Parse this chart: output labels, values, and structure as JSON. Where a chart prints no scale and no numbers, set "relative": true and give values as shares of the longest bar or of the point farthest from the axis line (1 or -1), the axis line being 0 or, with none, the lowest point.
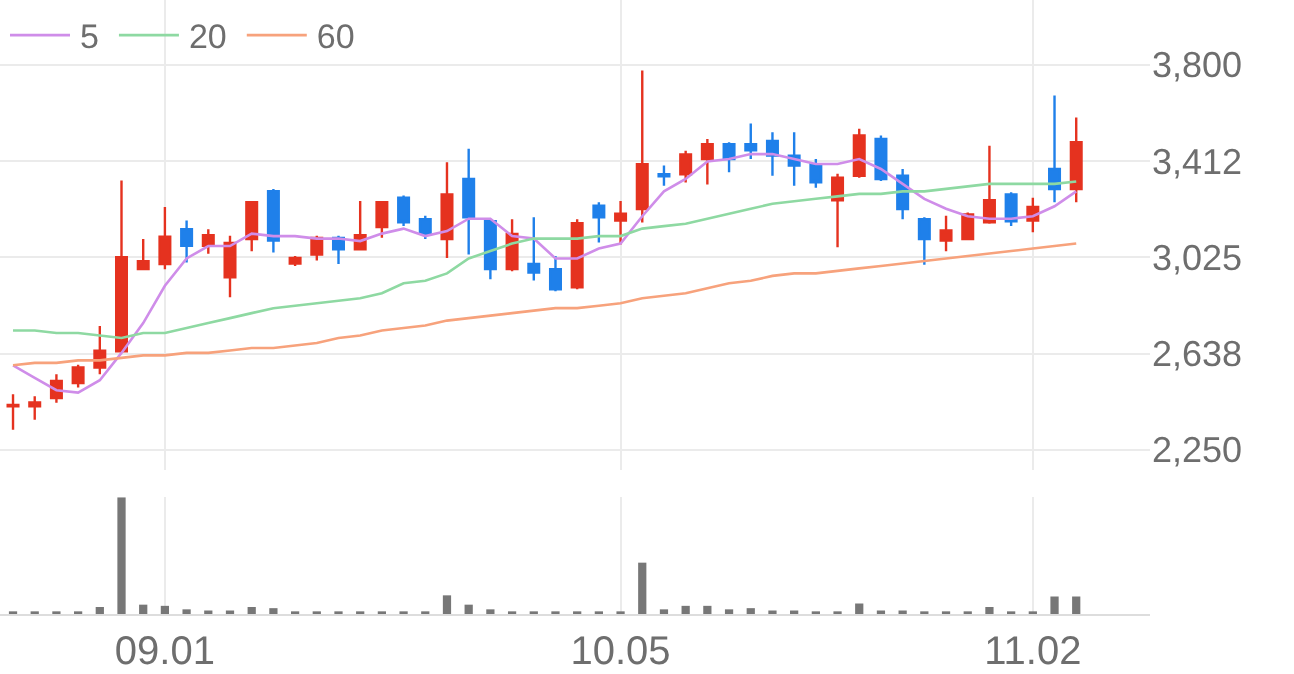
{
  "chart_data": [
    {
      "type": "candlestick",
      "categories": [
        null,
        null,
        null,
        null,
        null,
        null,
        null,
        "09.01",
        null,
        null,
        null,
        null,
        null,
        null,
        null,
        null,
        null,
        null,
        null,
        null,
        null,
        null,
        null,
        null,
        null,
        null,
        null,
        null,
        "10.05",
        null,
        null,
        null,
        null,
        null,
        null,
        null,
        null,
        null,
        null,
        null,
        null,
        null,
        null,
        null,
        null,
        null,
        null,
        "11.02",
        null,
        null
      ],
      "ohlc": [
        [
          2425,
          2474,
          2331,
          2431
        ],
        [
          2425,
          2466,
          2371,
          2441
        ],
        [
          2458,
          2554,
          2439,
          2527
        ],
        [
          2519,
          2592,
          2501,
          2581
        ],
        [
          2581,
          2748,
          2554,
          2649
        ],
        [
          2646,
          3334,
          2640,
          3025
        ],
        [
          2977,
          3098,
          2977,
          3009
        ],
        [
          2998,
          3227,
          2977,
          3108
        ],
        [
          3138,
          3173,
          3004,
          3071
        ],
        [
          3071,
          3138,
          3039,
          3114
        ],
        [
          2944,
          3111,
          2864,
          3082
        ],
        [
          3098,
          3251,
          3049,
          3246
        ],
        [
          3291,
          3299,
          3044,
          3092
        ],
        [
          3000,
          3030,
          2990,
          3022
        ],
        [
          3036,
          3111,
          3012,
          3103
        ],
        [
          3103,
          3111,
          2998,
          3057
        ],
        [
          3057,
          3251,
          3052,
          3114
        ],
        [
          3146,
          3251,
          3103,
          3246
        ],
        [
          3264,
          3273,
          3151,
          3165
        ],
        [
          3178,
          3192,
          3098,
          3119
        ],
        [
          3098,
          3407,
          3022,
          3278
        ],
        [
          3340,
          3461,
          3036,
          3186
        ],
        [
          3170,
          3178,
          2936,
          2977
        ],
        [
          2977,
          3178,
          2969,
          3119
        ],
        [
          2998,
          3186,
          2931,
          2963
        ],
        [
          2977,
          3030,
          2888,
          2896
        ],
        [
          2904,
          3178,
          2896,
          3162
        ],
        [
          3232,
          3246,
          3084,
          3186
        ],
        [
          3173,
          3251,
          3076,
          3200
        ],
        [
          3219,
          3776,
          3165,
          3399
        ],
        [
          3359,
          3394,
          3313,
          3351
        ],
        [
          3359,
          3453,
          3326,
          3439
        ],
        [
          3420,
          3501,
          3318,
          3480
        ],
        [
          3480,
          3488,
          3367,
          3420
        ],
        [
          3480,
          3563,
          3420,
          3455
        ],
        [
          3493,
          3528,
          3353,
          3434
        ],
        [
          3434,
          3528,
          3313,
          3394
        ],
        [
          3399,
          3420,
          3305,
          3326
        ],
        [
          3254,
          3361,
          3065,
          3345
        ],
        [
          3353,
          3542,
          3345,
          3515
        ],
        [
          3501,
          3515,
          3332,
          3340
        ],
        [
          3353,
          3380,
          3178,
          3219
        ],
        [
          3178,
          3186,
          2995,
          3098
        ],
        [
          3092,
          3192,
          3049,
          3133
        ],
        [
          3098,
          3205,
          3098,
          3197
        ],
        [
          3165,
          3474,
          3160,
          3254
        ],
        [
          3278,
          3286,
          3151,
          3170
        ],
        [
          3173,
          3264,
          3125,
          3227
        ],
        [
          3380,
          3676,
          3246,
          3299
        ],
        [
          3299,
          3587,
          3246,
          3488
        ]
      ],
      "colors": [
        "#e5321f",
        "#e5321f",
        "#e5321f",
        "#e5321f",
        "#e5321f",
        "#e5321f",
        "#e5321f",
        "#e5321f",
        "#1f80ea",
        "#e5321f",
        "#e5321f",
        "#e5321f",
        "#1f80ea",
        "#e5321f",
        "#e5321f",
        "#1f80ea",
        "#e5321f",
        "#e5321f",
        "#1f80ea",
        "#1f80ea",
        "#e5321f",
        "#1f80ea",
        "#1f80ea",
        "#e5321f",
        "#1f80ea",
        "#1f80ea",
        "#e5321f",
        "#1f80ea",
        "#e5321f",
        "#e5321f",
        "#1f80ea",
        "#e5321f",
        "#e5321f",
        "#1f80ea",
        "#1f80ea",
        "#1f80ea",
        "#1f80ea",
        "#1f80ea",
        "#e5321f",
        "#e5321f",
        "#1f80ea",
        "#1f80ea",
        "#1f80ea",
        "#e5321f",
        "#e5321f",
        "#e5321f",
        "#1f80ea",
        "#e5321f",
        "#1f80ea",
        "#e5321f"
      ],
      "series": [
        {
          "name": "5",
          "type": "line",
          "color": "#cf8de9",
          "values": [
            2590,
            2540,
            2490,
            2480,
            2530,
            2640,
            2760,
            2910,
            3020,
            3070,
            3070,
            3120,
            3110,
            3110,
            3100,
            3100,
            3090,
            3120,
            3140,
            3110,
            3130,
            3180,
            3180,
            3110,
            3100,
            3020,
            3020,
            3060,
            3080,
            3190,
            3290,
            3340,
            3410,
            3420,
            3440,
            3440,
            3420,
            3400,
            3400,
            3420,
            3380,
            3320,
            3260,
            3220,
            3190,
            3180,
            3180,
            3190,
            3230,
            3290
          ]
        },
        {
          "name": "20",
          "type": "line",
          "color": "#8ed9a2",
          "values": [
            2730,
            2730,
            2720,
            2720,
            2710,
            2700,
            2720,
            2720,
            2740,
            2760,
            2780,
            2800,
            2820,
            2830,
            2840,
            2850,
            2860,
            2880,
            2920,
            2930,
            2960,
            3020,
            3050,
            3080,
            3100,
            3100,
            3100,
            3110,
            3110,
            3140,
            3150,
            3160,
            3180,
            3200,
            3220,
            3240,
            3250,
            3260,
            3270,
            3280,
            3280,
            3290,
            3290,
            3300,
            3310,
            3320,
            3320,
            3320,
            3320,
            3330
          ]
        },
        {
          "name": "60",
          "type": "line",
          "color": "#f7a27c",
          "values": [
            2590,
            2600,
            2600,
            2610,
            2610,
            2620,
            2630,
            2630,
            2640,
            2640,
            2650,
            2660,
            2660,
            2670,
            2680,
            2700,
            2710,
            2730,
            2740,
            2750,
            2770,
            2780,
            2790,
            2800,
            2810,
            2820,
            2820,
            2830,
            2840,
            2860,
            2870,
            2880,
            2900,
            2920,
            2930,
            2950,
            2960,
            2960,
            2970,
            2980,
            2990,
            3000,
            3010,
            3020,
            3030,
            3040,
            3050,
            3060,
            3070,
            3080
          ]
        }
      ],
      "ylim": [
        2170,
        4060
      ],
      "yticks": [
        {
          "value": 2250,
          "label": "2,250"
        },
        {
          "value": 2637.5,
          "label": "2,638"
        },
        {
          "value": 3025,
          "label": "3,025"
        },
        {
          "value": 3412.5,
          "label": "3,412"
        },
        {
          "value": 3800,
          "label": "3,800"
        }
      ],
      "grid": true,
      "legend": "top left",
      "tick_labels": "y"
    },
    {
      "type": "bar",
      "relative": true,
      "color": "#777777",
      "categories": [
        null,
        null,
        null,
        null,
        null,
        null,
        null,
        "09.01",
        null,
        null,
        null,
        null,
        null,
        null,
        null,
        null,
        null,
        null,
        null,
        null,
        null,
        null,
        null,
        null,
        null,
        null,
        null,
        null,
        "10.05",
        null,
        null,
        null,
        null,
        null,
        null,
        null,
        null,
        null,
        null,
        null,
        null,
        null,
        null,
        null,
        null,
        null,
        null,
        "11.02",
        null,
        null
      ],
      "values": [
        0.01,
        0.01,
        0.01,
        0.01,
        0.06,
        1,
        0.08,
        0.07,
        0.04,
        0.03,
        0.03,
        0.06,
        0.05,
        0.02,
        0.02,
        0.02,
        0.02,
        0.02,
        0.02,
        0.02,
        0.16,
        0.08,
        0.04,
        0.02,
        0.02,
        0.02,
        0.02,
        0.02,
        0.01,
        0.44,
        0.04,
        0.07,
        0.07,
        0.04,
        0.05,
        0.03,
        0.03,
        0.01,
        0.02,
        0.09,
        0.03,
        0.03,
        0.02,
        0.01,
        0.01,
        0.06,
        0.02,
        0.02,
        0.15,
        0.15
      ],
      "grid": "x",
      "tick_labels": "x"
    }
  ]
}
